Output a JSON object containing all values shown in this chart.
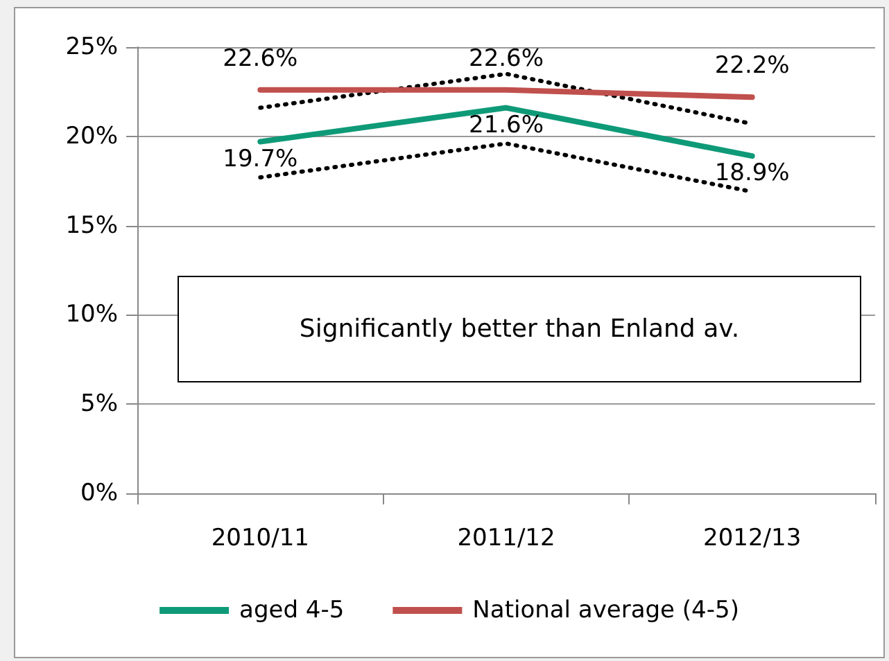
{
  "chart_data": {
    "type": "line",
    "categories": [
      "2010/11",
      "2011/12",
      "2012/13"
    ],
    "series": [
      {
        "name": "aged 4-5",
        "color": "#0e9a78",
        "values": [
          19.7,
          21.6,
          18.9
        ],
        "value_labels": [
          "19.7%",
          "21.6%",
          "18.9%"
        ]
      },
      {
        "name": "National average (4-5)",
        "color": "#c0504d",
        "values": [
          22.6,
          22.6,
          22.2
        ],
        "value_labels": [
          "22.6%",
          "22.6%",
          "22.2%"
        ]
      },
      {
        "color": "#000000",
        "line_style": "dotted",
        "values": [
          21.6,
          23.5,
          20.7
        ]
      },
      {
        "color": "#000000",
        "line_style": "dotted",
        "values": [
          17.7,
          19.6,
          16.9
        ]
      }
    ],
    "ylim": [
      0,
      25
    ],
    "yticks": [
      {
        "value": 0,
        "label": "0%"
      },
      {
        "value": 5,
        "label": "5%"
      },
      {
        "value": 10,
        "label": "10%"
      },
      {
        "value": 15,
        "label": "15%"
      },
      {
        "value": 20,
        "label": "20%"
      },
      {
        "value": 25,
        "label": "25%"
      }
    ],
    "grid": "y",
    "legend": "bottom",
    "marker": "none",
    "line_style": "solid",
    "annotations": [
      "Significantly better than Enland av."
    ]
  }
}
